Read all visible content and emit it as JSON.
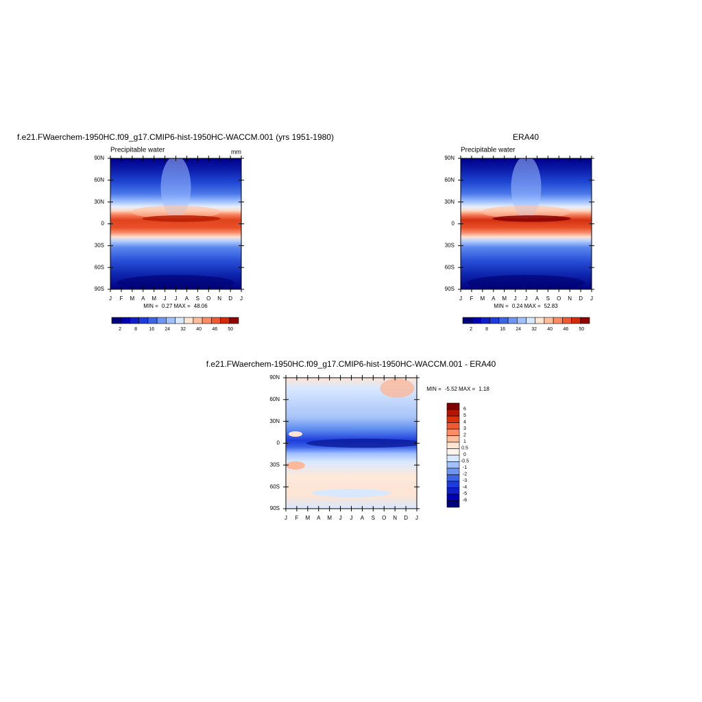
{
  "chart_data": [
    {
      "type": "contour",
      "title": "f.e21.FWaerchem-1950HC.f09_g17.CMIP6-hist-1950HC-WACCM.001 (yrs 1951-1980)",
      "subtitle": "Precipitable water",
      "units": "mm",
      "categories": [
        "J",
        "F",
        "M",
        "A",
        "M",
        "J",
        "J",
        "A",
        "S",
        "O",
        "N",
        "D",
        "J"
      ],
      "ylim": [
        -90,
        90
      ],
      "yticks": [
        {
          "value": 90,
          "label": "90N"
        },
        {
          "value": 60,
          "label": "60N"
        },
        {
          "value": 30,
          "label": "30N"
        },
        0,
        {
          "value": -30,
          "label": "30S"
        },
        {
          "value": -60,
          "label": "60S"
        },
        {
          "value": -90,
          "label": "90S"
        }
      ],
      "min_label": "MIN =",
      "min": 0.27,
      "max_label": "MAX =",
      "max": 48.06,
      "colorbar": {
        "orientation": "horizontal",
        "colors": [
          "#00007f",
          "#0000b0",
          "#1020c8",
          "#1e3cdc",
          "#3c64e6",
          "#6e96f0",
          "#a0c0ff",
          "#d8e8ff",
          "#ffe4d2",
          "#ffbe9b",
          "#ff8c64",
          "#f05a32",
          "#d42a08",
          "#900000"
        ],
        "ticks": [
          2,
          8,
          16,
          24,
          32,
          40,
          46,
          50
        ]
      }
    },
    {
      "type": "contour",
      "title": "ERA40",
      "subtitle": "Precipitable water",
      "categories": [
        "J",
        "F",
        "M",
        "A",
        "M",
        "J",
        "J",
        "A",
        "S",
        "O",
        "N",
        "D",
        "J"
      ],
      "ylim": [
        -90,
        90
      ],
      "yticks": [
        {
          "value": 90,
          "label": "90N"
        },
        {
          "value": 60,
          "label": "60N"
        },
        {
          "value": 30,
          "label": "30N"
        },
        0,
        {
          "value": -30,
          "label": "30S"
        },
        {
          "value": -60,
          "label": "60S"
        },
        {
          "value": -90,
          "label": "90S"
        }
      ],
      "min_label": "MIN =",
      "min": 0.24,
      "max_label": "MAX =",
      "max": 52.83,
      "colorbar": {
        "orientation": "horizontal",
        "colors": [
          "#00007f",
          "#0000b0",
          "#1020c8",
          "#1e3cdc",
          "#3c64e6",
          "#6e96f0",
          "#a0c0ff",
          "#d8e8ff",
          "#ffe4d2",
          "#ffbe9b",
          "#ff8c64",
          "#f05a32",
          "#d42a08",
          "#900000"
        ],
        "ticks": [
          2,
          8,
          16,
          24,
          32,
          40,
          46,
          50
        ]
      }
    },
    {
      "type": "contour",
      "title": "f.e21.FWaerchem-1950HC.f09_g17.CMIP6-hist-1950HC-WACCM.001 - ERA40",
      "categories": [
        "J",
        "F",
        "M",
        "A",
        "M",
        "J",
        "J",
        "A",
        "S",
        "O",
        "N",
        "D",
        "J"
      ],
      "ylim": [
        -90,
        90
      ],
      "yticks": [
        {
          "value": 90,
          "label": "90N"
        },
        {
          "value": 60,
          "label": "60N"
        },
        {
          "value": 30,
          "label": "30N"
        },
        0,
        {
          "value": -30,
          "label": "30S"
        },
        {
          "value": -60,
          "label": "60S"
        },
        {
          "value": -90,
          "label": "90S"
        }
      ],
      "min_label": "MIN =",
      "min": -5.52,
      "max_label": "MAX =",
      "max": 1.18,
      "colorbar": {
        "orientation": "vertical",
        "colors": [
          "#7f0000",
          "#b41400",
          "#dc320a",
          "#f05a32",
          "#ff8c64",
          "#ffbe9b",
          "#ffe4d2",
          "#fff4ec",
          "#d8e8ff",
          "#a0c0ff",
          "#6e96f0",
          "#3c64e6",
          "#1e3cdc",
          "#1020c8",
          "#0000b0",
          "#00007f"
        ],
        "ticks": [
          6,
          5,
          4,
          3,
          2,
          1,
          0.5,
          0,
          -0.5,
          -1,
          -2,
          -3,
          -4,
          -5,
          -6
        ]
      }
    }
  ]
}
